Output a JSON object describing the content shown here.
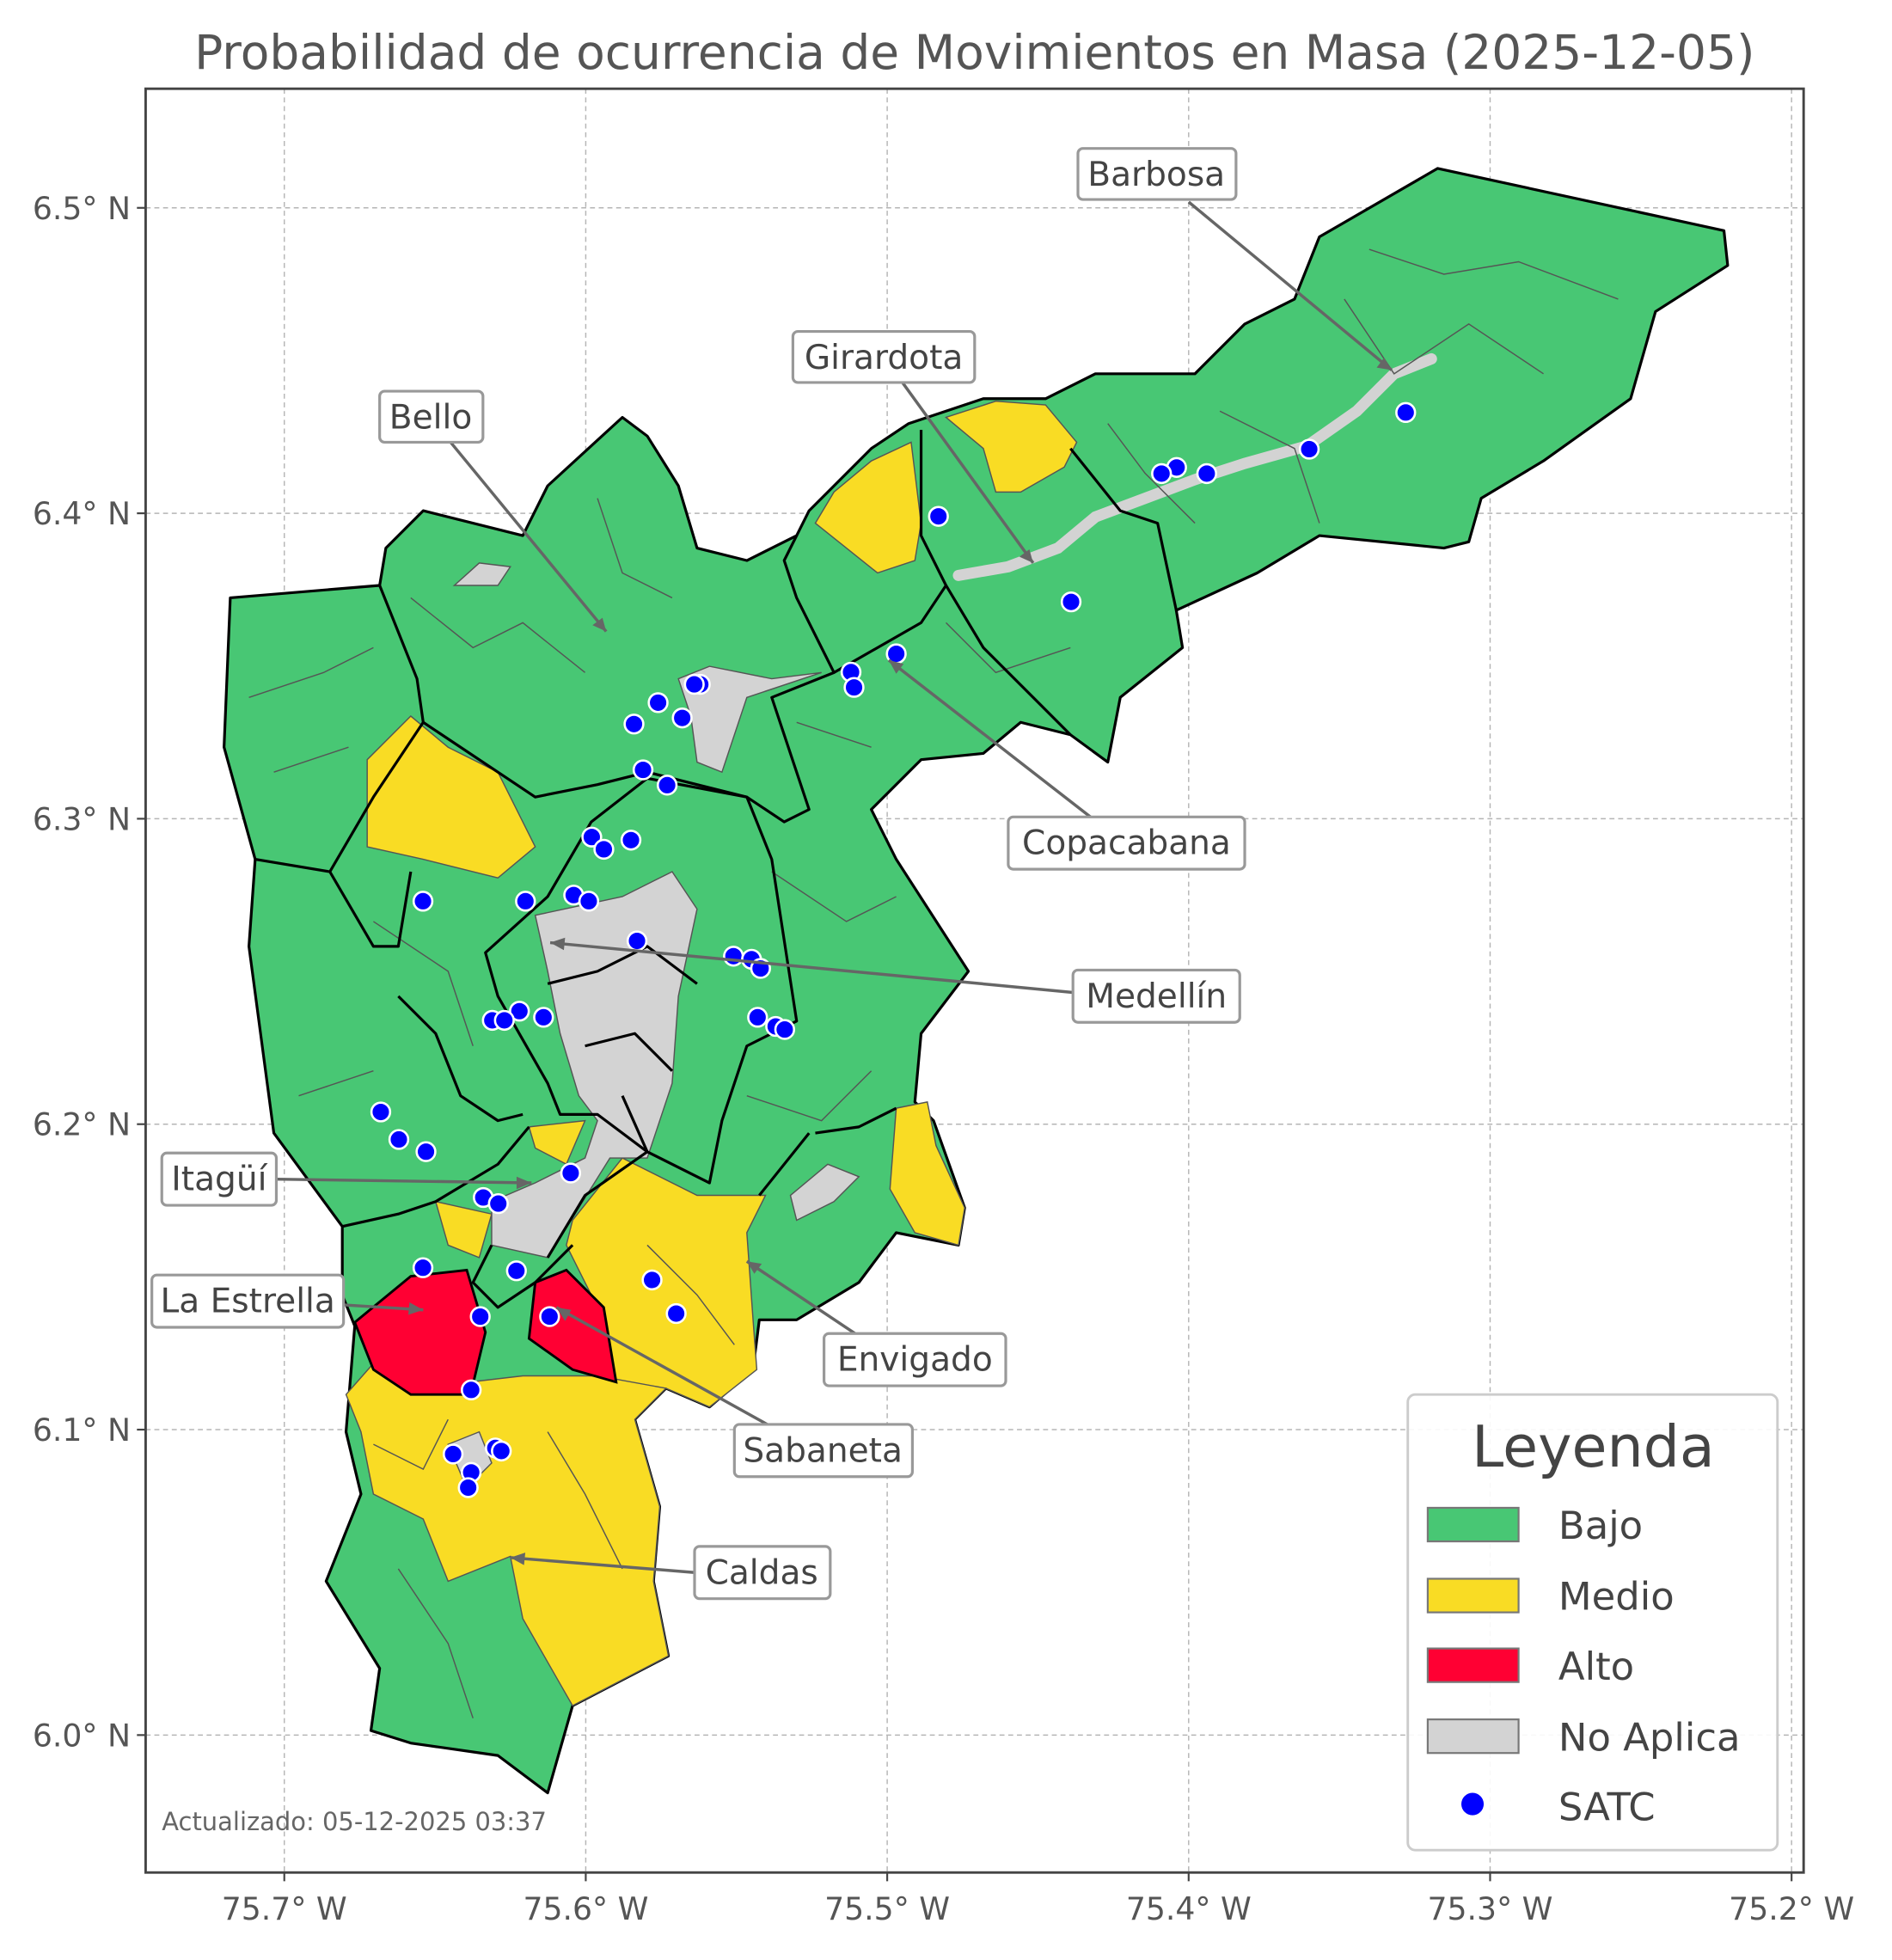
{
  "title": "Probabilidad de ocurrencia de Movimientos en Masa (2025-12-05)",
  "footer": "Actualizado: 05-12-2025 03:37",
  "colors": {
    "bajo": "#48c774",
    "medio": "#f9dc24",
    "alto": "#ff0033",
    "no_aplica": "#d3d3d3",
    "satc": "#0000ff"
  },
  "axes": {
    "x_ticks": [
      {
        "value": -75.7,
        "label": "75.7° W"
      },
      {
        "value": -75.6,
        "label": "75.6° W"
      },
      {
        "value": -75.5,
        "label": "75.5° W"
      },
      {
        "value": -75.4,
        "label": "75.4° W"
      },
      {
        "value": -75.3,
        "label": "75.3° W"
      },
      {
        "value": -75.2,
        "label": "75.2° W"
      }
    ],
    "y_ticks": [
      {
        "value": 6.5,
        "label": "6.5° N"
      },
      {
        "value": 6.4,
        "label": "6.4° N"
      },
      {
        "value": 6.3,
        "label": "6.3° N"
      },
      {
        "value": 6.2,
        "label": "6.2° N"
      },
      {
        "value": 6.1,
        "label": "6.1° N"
      },
      {
        "value": 6.0,
        "label": "6.0° N"
      }
    ],
    "xlim": [
      -75.746,
      -75.196
    ],
    "ylim": [
      5.955,
      6.539
    ]
  },
  "municipalities": [
    {
      "name": "Barbosa"
    },
    {
      "name": "Girardota"
    },
    {
      "name": "Bello"
    },
    {
      "name": "Copacabana"
    },
    {
      "name": "Medellín"
    },
    {
      "name": "Itagüí"
    },
    {
      "name": "La Estrella"
    },
    {
      "name": "Envigado"
    },
    {
      "name": "Sabaneta"
    },
    {
      "name": "Caldas"
    }
  ],
  "legend": {
    "title": "Leyenda",
    "items": [
      {
        "label": "Bajo",
        "color": "#48c774"
      },
      {
        "label": "Medio",
        "color": "#f9dc24"
      },
      {
        "label": "Alto",
        "color": "#ff0033"
      },
      {
        "label": "No Aplica",
        "color": "#d3d3d3"
      },
      {
        "label": "SATC",
        "color": "#0000ff"
      }
    ]
  },
  "satc_points": [
    [
      -75.328,
      6.433
    ],
    [
      -75.36,
      6.421
    ],
    [
      -75.394,
      6.413
    ],
    [
      -75.404,
      6.415
    ],
    [
      -75.409,
      6.413
    ],
    [
      -75.483,
      6.399
    ],
    [
      -75.439,
      6.371
    ],
    [
      -75.497,
      6.354
    ],
    [
      -75.512,
      6.348
    ],
    [
      -75.511,
      6.343
    ],
    [
      -75.562,
      6.344
    ],
    [
      -75.564,
      6.344
    ],
    [
      -75.568,
      6.333
    ],
    [
      -75.576,
      6.338
    ],
    [
      -75.584,
      6.331
    ],
    [
      -75.581,
      6.316
    ],
    [
      -75.573,
      6.311
    ],
    [
      -75.598,
      6.294
    ],
    [
      -75.585,
      6.293
    ],
    [
      -75.594,
      6.29
    ],
    [
      -75.654,
      6.273
    ],
    [
      -75.62,
      6.273
    ],
    [
      -75.604,
      6.275
    ],
    [
      -75.599,
      6.273
    ],
    [
      -75.583,
      6.26
    ],
    [
      -75.551,
      6.255
    ],
    [
      -75.545,
      6.254
    ],
    [
      -75.542,
      6.251
    ],
    [
      -75.543,
      6.235
    ],
    [
      -75.537,
      6.232
    ],
    [
      -75.534,
      6.231
    ],
    [
      -75.622,
      6.237
    ],
    [
      -75.631,
      6.234
    ],
    [
      -75.627,
      6.234
    ],
    [
      -75.614,
      6.235
    ],
    [
      -75.668,
      6.204
    ],
    [
      -75.662,
      6.195
    ],
    [
      -75.653,
      6.191
    ],
    [
      -75.605,
      6.184
    ],
    [
      -75.634,
      6.176
    ],
    [
      -75.629,
      6.174
    ],
    [
      -75.654,
      6.153
    ],
    [
      -75.623,
      6.152
    ],
    [
      -75.578,
      6.149
    ],
    [
      -75.57,
      6.138
    ],
    [
      -75.635,
      6.137
    ],
    [
      -75.612,
      6.137
    ],
    [
      -75.638,
      6.113
    ],
    [
      -75.644,
      6.092
    ],
    [
      -75.63,
      6.094
    ],
    [
      -75.628,
      6.093
    ],
    [
      -75.638,
      6.086
    ],
    [
      -75.639,
      6.081
    ]
  ]
}
